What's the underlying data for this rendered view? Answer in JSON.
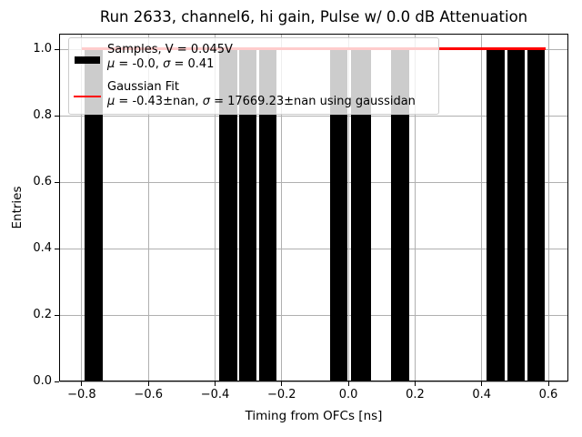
{
  "chart_data": {
    "type": "bar",
    "title": "Run 2633, channel6, hi gain, Pulse w/ 0.0 dB Attenuation",
    "xlabel": "Timing from OFCs [ns]",
    "ylabel": "Entries",
    "xlim": [
      -0.868,
      0.66
    ],
    "ylim": [
      0,
      1.048
    ],
    "grid": true,
    "colors": {
      "bar": "#000000",
      "fit_line": "#ff0000",
      "grid": "#b0b0b0"
    },
    "x_ticks": [
      {
        "v": -0.8,
        "label": "−0.8"
      },
      {
        "v": -0.6,
        "label": "−0.6"
      },
      {
        "v": -0.4,
        "label": "−0.4"
      },
      {
        "v": -0.2,
        "label": "−0.2"
      },
      {
        "v": 0.0,
        "label": "0.0"
      },
      {
        "v": 0.2,
        "label": "0.2"
      },
      {
        "v": 0.4,
        "label": "0.4"
      },
      {
        "v": 0.6,
        "label": "0.6"
      }
    ],
    "y_ticks": [
      {
        "v": 0.0,
        "label": "0.0"
      },
      {
        "v": 0.2,
        "label": "0.2"
      },
      {
        "v": 0.4,
        "label": "0.4"
      },
      {
        "v": 0.6,
        "label": "0.6"
      },
      {
        "v": 0.8,
        "label": "0.8"
      },
      {
        "v": 1.0,
        "label": "1.0"
      }
    ],
    "bars": [
      {
        "x0": -0.791,
        "x1": -0.737,
        "height": 1.0
      },
      {
        "x0": -0.389,
        "x1": -0.334,
        "height": 1.0
      },
      {
        "x0": -0.327,
        "x1": -0.275,
        "height": 1.0
      },
      {
        "x0": -0.268,
        "x1": -0.216,
        "height": 1.0
      },
      {
        "x0": -0.055,
        "x1": -0.002,
        "height": 1.0
      },
      {
        "x0": 0.009,
        "x1": 0.067,
        "height": 1.0
      },
      {
        "x0": 0.127,
        "x1": 0.182,
        "height": 1.0
      },
      {
        "x0": 0.414,
        "x1": 0.468,
        "height": 1.0
      },
      {
        "x0": 0.476,
        "x1": 0.53,
        "height": 1.0
      },
      {
        "x0": 0.536,
        "x1": 0.589,
        "height": 1.0
      }
    ],
    "fit_line": {
      "x0": -0.8,
      "x1": 0.592,
      "y": 1.004
    },
    "legend": {
      "entries": [
        {
          "swatch": "patch",
          "lines": [
            "Samples, V = 0.045V",
            "μ = -0.0, σ = 0.41"
          ]
        },
        {
          "swatch": "line",
          "lines": [
            "Gaussian Fit",
            "μ = -0.43±nan, σ = 17669.23±nan using gaussidan"
          ]
        }
      ]
    }
  }
}
